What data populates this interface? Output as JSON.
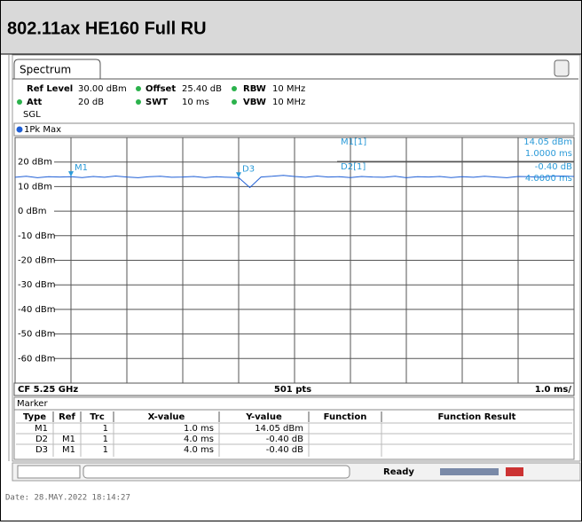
{
  "header": {
    "title": "802.11ax HE160 Full RU"
  },
  "tab": "Spectrum",
  "settings": [
    [
      "Ref Level",
      "30.00 dBm",
      "Offset",
      "25.40 dB",
      "RBW",
      "10 MHz"
    ],
    [
      "Att",
      "20 dB",
      "SWT",
      "10 ms",
      "VBW",
      "10 MHz"
    ],
    [
      "SGL"
    ]
  ],
  "chart_data": {
    "type": "line",
    "trace_label": "1Pk Max",
    "x": [
      0,
      0.2,
      0.4,
      0.6,
      0.8,
      1.0,
      1.2,
      1.4,
      1.6,
      1.8,
      2.0,
      2.2,
      2.4,
      2.6,
      2.8,
      3.0,
      3.2,
      3.4,
      3.6,
      3.8,
      4.0,
      4.2,
      4.4,
      4.6,
      4.8,
      5.0,
      5.2,
      5.4,
      5.6,
      5.8,
      6.0,
      6.2,
      6.4,
      6.6,
      6.8,
      7.0,
      7.2,
      7.4,
      7.6,
      7.8,
      8.0,
      8.2,
      8.4,
      8.6,
      8.8,
      9.0,
      9.2,
      9.4,
      9.6,
      9.8,
      10.0
    ],
    "series": [
      {
        "name": "1Pk Max",
        "color": "#1f5fd6",
        "values": [
          13.8,
          14.2,
          13.6,
          14.0,
          13.9,
          14.05,
          13.7,
          14.1,
          13.8,
          14.3,
          13.9,
          13.6,
          14.0,
          14.2,
          13.8,
          13.9,
          14.1,
          13.7,
          14.0,
          13.8,
          13.65,
          9.6,
          13.9,
          14.2,
          14.6,
          14.1,
          13.8,
          14.3,
          13.9,
          14.0,
          13.7,
          14.1,
          13.9,
          13.8,
          14.2,
          13.6,
          14.0,
          13.9,
          14.1,
          13.7,
          14.0,
          13.8,
          14.2,
          13.9,
          13.6,
          14.1,
          14.0,
          13.8,
          14.2,
          14.3,
          14.1
        ]
      }
    ],
    "xlim": [
      0,
      10
    ],
    "ylim": [
      -70,
      30
    ],
    "xticks": [
      1,
      2,
      3,
      4,
      5,
      6,
      7,
      8,
      9
    ],
    "yticks": [
      {
        "value": 20,
        "label": "20 dBm"
      },
      {
        "value": 10,
        "label": "10 dBm"
      },
      {
        "value": 0,
        "label": "0 dBm"
      },
      {
        "value": -10,
        "label": "-10 dBm"
      },
      {
        "value": -20,
        "label": "-20 dBm"
      },
      {
        "value": -30,
        "label": "-30 dBm"
      },
      {
        "value": -40,
        "label": "-40 dBm"
      },
      {
        "value": -50,
        "label": "-50 dBm"
      },
      {
        "value": -60,
        "label": "-60 dBm"
      }
    ],
    "markers": [
      {
        "label": "M1",
        "x": 1.0,
        "y": 14.05
      },
      {
        "label": "D3",
        "x": 4.0,
        "y": 13.65
      }
    ],
    "readout": [
      [
        "M1[1]",
        "14.05 dBm",
        "1.0000 ms"
      ],
      [
        "D2[1]",
        "-0.40 dB",
        "4.0000 ms"
      ]
    ],
    "footer": [
      "CF 5.25 GHz",
      "501 pts",
      "1.0 ms/"
    ]
  },
  "marker_table": {
    "title": "Marker",
    "columns": [
      "Type",
      "Ref",
      "Trc",
      "X-value",
      "Y-value",
      "Function",
      "Function Result"
    ],
    "rows": [
      [
        "M1",
        null,
        "1",
        "1.0 ms",
        "14.05 dBm"
      ],
      [
        "D2",
        "M1",
        "1",
        "4.0 ms",
        "-0.40 dB"
      ],
      [
        "D3",
        "M1",
        "1",
        "4.0 ms",
        "-0.40 dB"
      ]
    ]
  },
  "status": "Ready",
  "date": "Date: 28.MAY.2022  18:14:27"
}
